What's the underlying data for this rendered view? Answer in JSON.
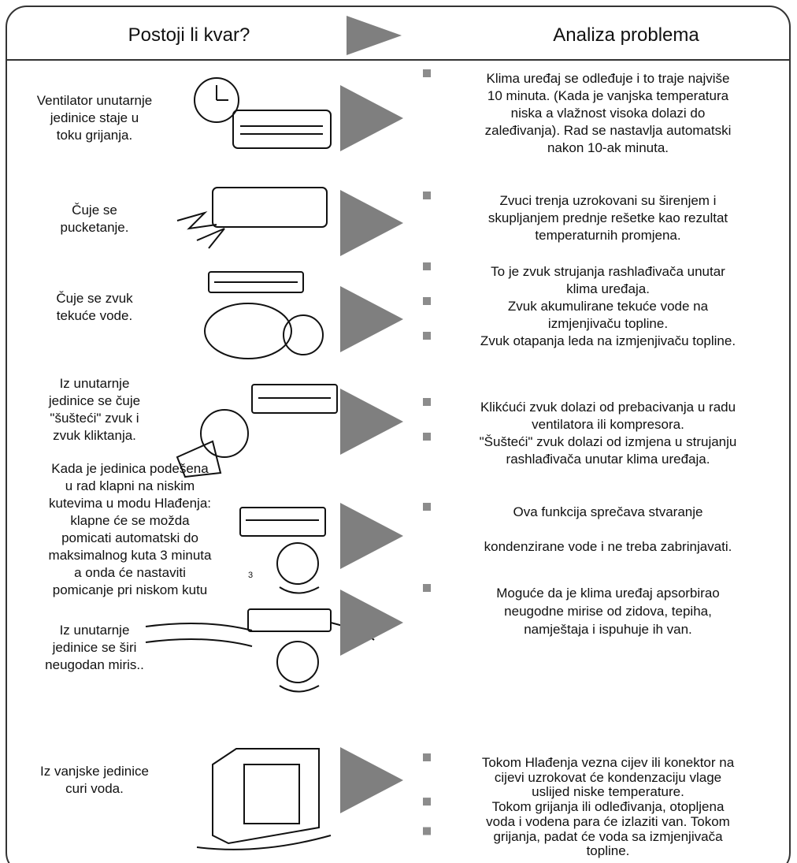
{
  "header": {
    "left_title": "Postoji li kvar?",
    "right_title": "Analiza problema"
  },
  "rows": [
    {
      "problem": [
        "Ventilator unutarnje",
        "jedinice staje u",
        "toku grijanja."
      ],
      "analysis": [
        [
          "Klima uređaj se odleđuje i to traje najviše",
          "10 minuta. (Kada je vanjska temperatura",
          "niska a vlažnost visoka dolazi do",
          "zaleđivanja). Rad se nastavlja automatski",
          "nakon 10-ak minuta."
        ]
      ]
    },
    {
      "problem": [
        "Čuje se",
        "pucketanje."
      ],
      "analysis": [
        [
          "Zvuci trenja uzrokovani su širenjem i",
          "skupljanjem prednje rešetke kao rezultat",
          "temperaturnih promjena."
        ]
      ]
    },
    {
      "problem": [
        "Čuje se zvuk",
        "tekuće vode."
      ],
      "analysis": [
        [
          "To je zvuk strujanja rashlađivača unutar",
          "klima uređaja."
        ],
        [
          "Zvuk akumulirane tekuće vode na",
          "izmjenjivaču topline."
        ],
        [
          "Zvuk otapanja leda na izmjenjivaču topline."
        ]
      ]
    },
    {
      "problem": [
        "Iz unutarnje",
        "jedinice se čuje",
        "\"šušteći\" zvuk i",
        "zvuk kliktanja."
      ],
      "analysis": [
        [
          "Klikćući zvuk dolazi od prebacivanja u radu",
          "ventilatora ili kompresora."
        ],
        [
          "\"Šušteći\" zvuk  dolazi od izmjena u strujanju",
          "rashlađivača unutar klima uređaja."
        ]
      ]
    },
    {
      "problem": [
        "Kada je jedinica podešena",
        "u rad klapni na niskim",
        "kutevima u modu Hlađenja:",
        "klapne će se možda",
        "pomicati automatski do",
        "maksimalnog kuta 3 minuta",
        "a onda će nastaviti",
        "pomicanje pri niskom kutu"
      ],
      "analysis": [
        [
          "Ova funkcija sprečava stvaranje",
          "kondenzirane vode i ne treba zabrinjavati."
        ]
      ],
      "stray_mark": "3"
    },
    {
      "problem": [
        "Iz unutarnje",
        "jedinice se širi",
        "neugodan miris.."
      ],
      "analysis": [
        [
          "Moguće da je klima uređaj apsorbirao",
          "neugodne mirise od zidova, tepiha,",
          "namještaja i ispuhuje ih van."
        ]
      ]
    },
    {
      "problem": [
        "Iz vanjske jedinice",
        "curi voda."
      ],
      "analysis": [
        [
          "Tokom Hlađenja vezna cijev ili konektor na",
          "cijevi uzrokovat će kondenzaciju vlage",
          "uslijed niske temperature."
        ],
        [
          "Tokom grijanja ili odleđivanja, otopljena",
          "voda i vodena para će izlaziti van. Tokom"
        ],
        [
          "grijanja, padat će voda sa izmjenjivača",
          "topline."
        ]
      ]
    }
  ]
}
